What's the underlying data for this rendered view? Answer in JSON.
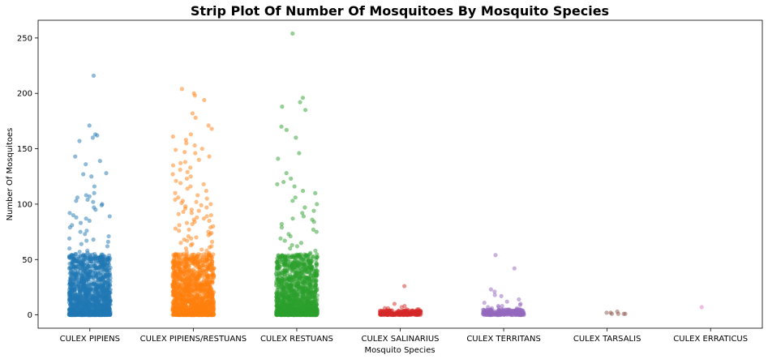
{
  "chart_data": {
    "type": "scatter",
    "subtype": "strip",
    "title": "Strip Plot Of Number Of Mosquitoes By Mosquito Species",
    "xlabel": "Mosquito Species",
    "ylabel": "Number Of Mosquitoes",
    "ylim": [
      -12,
      266
    ],
    "yticks": [
      0,
      50,
      100,
      150,
      200,
      250
    ],
    "grid": false,
    "legend": "none",
    "categories": [
      "CULEX PIPIENS",
      "CULEX PIPIENS/RESTUANS",
      "CULEX RESTUANS",
      "CULEX SALINARIUS",
      "CULEX TERRITANS",
      "CULEX TARSALIS",
      "CULEX ERRATICUS"
    ],
    "colors": [
      "#1f77b4",
      "#ff7f0e",
      "#2ca02c",
      "#d62728",
      "#9467bd",
      "#8c564b",
      "#e377c2"
    ],
    "series": [
      {
        "category": "CULEX PIPIENS",
        "max": 216,
        "outliers": [
          216,
          171,
          163,
          162,
          160,
          157,
          143,
          139,
          136,
          128,
          127,
          125,
          116,
          110,
          108,
          107,
          106,
          104,
          103,
          102,
          100,
          99,
          97,
          95,
          92,
          90,
          89,
          88,
          87,
          85,
          83,
          81,
          79,
          76,
          75,
          73,
          71,
          69,
          68,
          67,
          66,
          64,
          62,
          60,
          58,
          57,
          56,
          55,
          54,
          53,
          52
        ]
      },
      {
        "category": "CULEX PIPIENS/RESTUANS",
        "max": 204,
        "outliers": [
          204,
          200,
          198,
          194,
          182,
          178,
          171,
          168,
          163,
          161,
          158,
          155,
          153,
          150,
          149,
          147,
          146,
          143,
          140,
          138,
          137,
          135,
          133,
          131,
          129,
          127,
          125,
          123,
          121,
          119,
          118,
          116,
          114,
          112,
          110,
          108,
          106,
          105,
          104,
          103,
          102,
          101,
          100,
          99,
          98,
          97,
          96,
          95,
          94,
          93,
          92,
          91,
          90,
          89,
          88,
          87,
          86,
          85,
          84,
          83,
          82,
          81,
          80,
          79,
          78,
          77,
          76,
          75,
          74,
          73,
          72,
          71,
          70,
          69,
          68,
          67,
          66,
          65,
          64,
          63,
          62,
          61,
          60,
          59,
          58,
          57,
          56
        ]
      },
      {
        "category": "CULEX RESTUANS",
        "max": 254,
        "outliers": [
          254,
          196,
          192,
          188,
          185,
          170,
          167,
          160,
          146,
          141,
          128,
          123,
          120,
          118,
          116,
          112,
          110,
          106,
          103,
          100,
          97,
          94,
          92,
          89,
          87,
          86,
          84,
          82,
          79,
          77,
          75,
          73,
          71,
          69,
          67,
          65,
          63,
          62,
          60,
          58,
          56,
          54,
          52,
          50,
          49,
          48
        ]
      },
      {
        "category": "CULEX SALINARIUS",
        "max": 26,
        "outliers": [
          26,
          10,
          8,
          7,
          6,
          6,
          5,
          5,
          5,
          4,
          4,
          4
        ]
      },
      {
        "category": "CULEX TERRITANS",
        "max": 54,
        "outliers": [
          54,
          42,
          23,
          21,
          18,
          17,
          14,
          12,
          11,
          10,
          9,
          8,
          8,
          7,
          7,
          6,
          6,
          5,
          5
        ]
      },
      {
        "category": "CULEX TARSALIS",
        "max": 3,
        "values": [
          1,
          1,
          2,
          2,
          3,
          1,
          1
        ]
      },
      {
        "category": "CULEX ERRATICUS",
        "max": 7,
        "values": [
          7
        ]
      }
    ]
  }
}
